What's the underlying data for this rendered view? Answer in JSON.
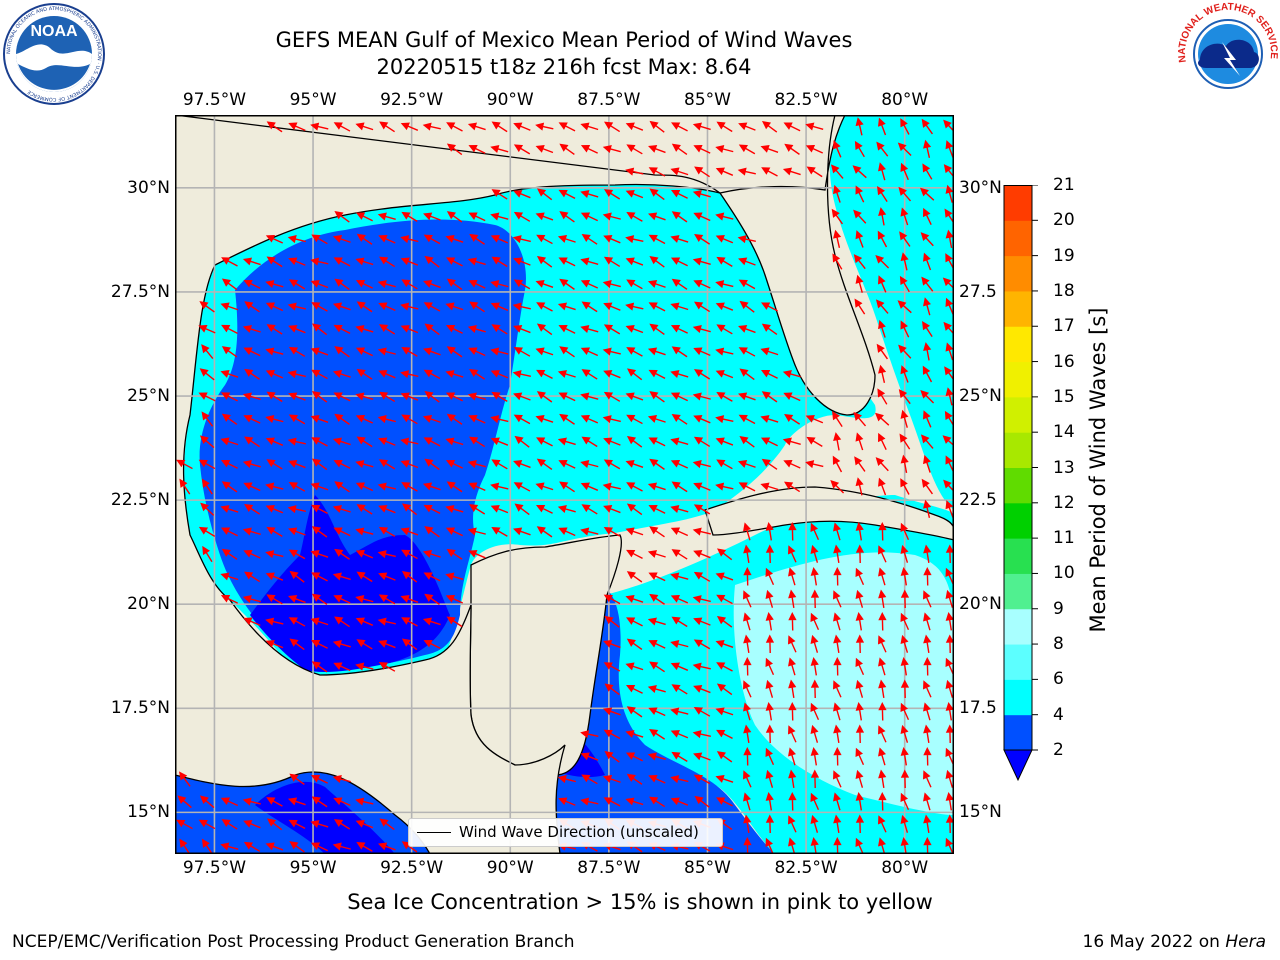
{
  "title": {
    "line1": "GEFS MEAN Gulf of Mexico Mean Period of Wind Waves",
    "line2": "20220515 t18z 216h fcst   Max: 8.64"
  },
  "logos": {
    "left": "noaa-logo",
    "right": "nws-logo",
    "left_ring_text": "NATIONAL OCEANIC AND ATMOSPHERIC ADMINISTRATION · U.S. DEPARTMENT OF COMMERCE",
    "left_center_text": "NOAA",
    "right_ring_text": "NATIONAL WEATHER SERVICE"
  },
  "map": {
    "projection": "plate-carree",
    "lon_range": [
      -98.5,
      -78.75
    ],
    "lat_range": [
      14.0,
      31.75
    ],
    "lon_ticks": [
      "97.5°W",
      "95°W",
      "92.5°W",
      "90°W",
      "87.5°W",
      "85°W",
      "82.5°W",
      "80°W"
    ],
    "lon_tick_values": [
      -97.5,
      -95,
      -92.5,
      -90,
      -87.5,
      -85,
      -82.5,
      -80
    ],
    "lat_ticks_left": [
      "30°N",
      "27.5°N",
      "25°N",
      "22.5°N",
      "20°N",
      "17.5°N",
      "15°N"
    ],
    "lat_ticks_right": [
      "30°N",
      "27.5",
      "25°N",
      "22.5",
      "20°N",
      "17.5",
      "15°N"
    ],
    "lat_tick_values": [
      30,
      27.5,
      25,
      22.5,
      20,
      17.5,
      15
    ],
    "gridlines": true,
    "colors": {
      "land": "#efecdc",
      "coast": "#000000",
      "grid": "#b4b4b4",
      "arrow": "#ff0000"
    },
    "prevailing_arrow_direction": "wind waves travel toward the west-northwest to northwest across most of the Gulf; northward in the western Caribbean"
  },
  "legend": {
    "label": "Wind Wave Direction (unscaled)",
    "placement": "lower-center"
  },
  "colorbar": {
    "label": "Mean Period of Wind Waves [s]",
    "ticks": [
      "21",
      "20",
      "19",
      "18",
      "17",
      "16",
      "15",
      "14",
      "13",
      "12",
      "11",
      "10",
      "9",
      "8",
      "6",
      "4",
      "2"
    ],
    "levels": [
      2,
      4,
      6,
      8,
      9,
      10,
      11,
      12,
      13,
      14,
      15,
      16,
      17,
      18,
      19,
      20,
      21
    ],
    "colors": [
      "#0050ff",
      "#00ffff",
      "#5cffff",
      "#a8ffff",
      "#50f090",
      "#28e050",
      "#00d000",
      "#60dc00",
      "#a8e800",
      "#d0f000",
      "#f0f000",
      "#ffe800",
      "#ffb400",
      "#ff8c00",
      "#ff6400",
      "#ff3c00",
      "#ff0000"
    ],
    "under_color": "#0000ff",
    "extend": "min"
  },
  "caption": "Sea Ice Concentration > 15% is shown in pink to yellow",
  "footer": {
    "left": "NCEP/EMC/Verification Post Processing Product Generation Branch",
    "right_date": "16 May 2022 on ",
    "right_machine": "Hera"
  }
}
